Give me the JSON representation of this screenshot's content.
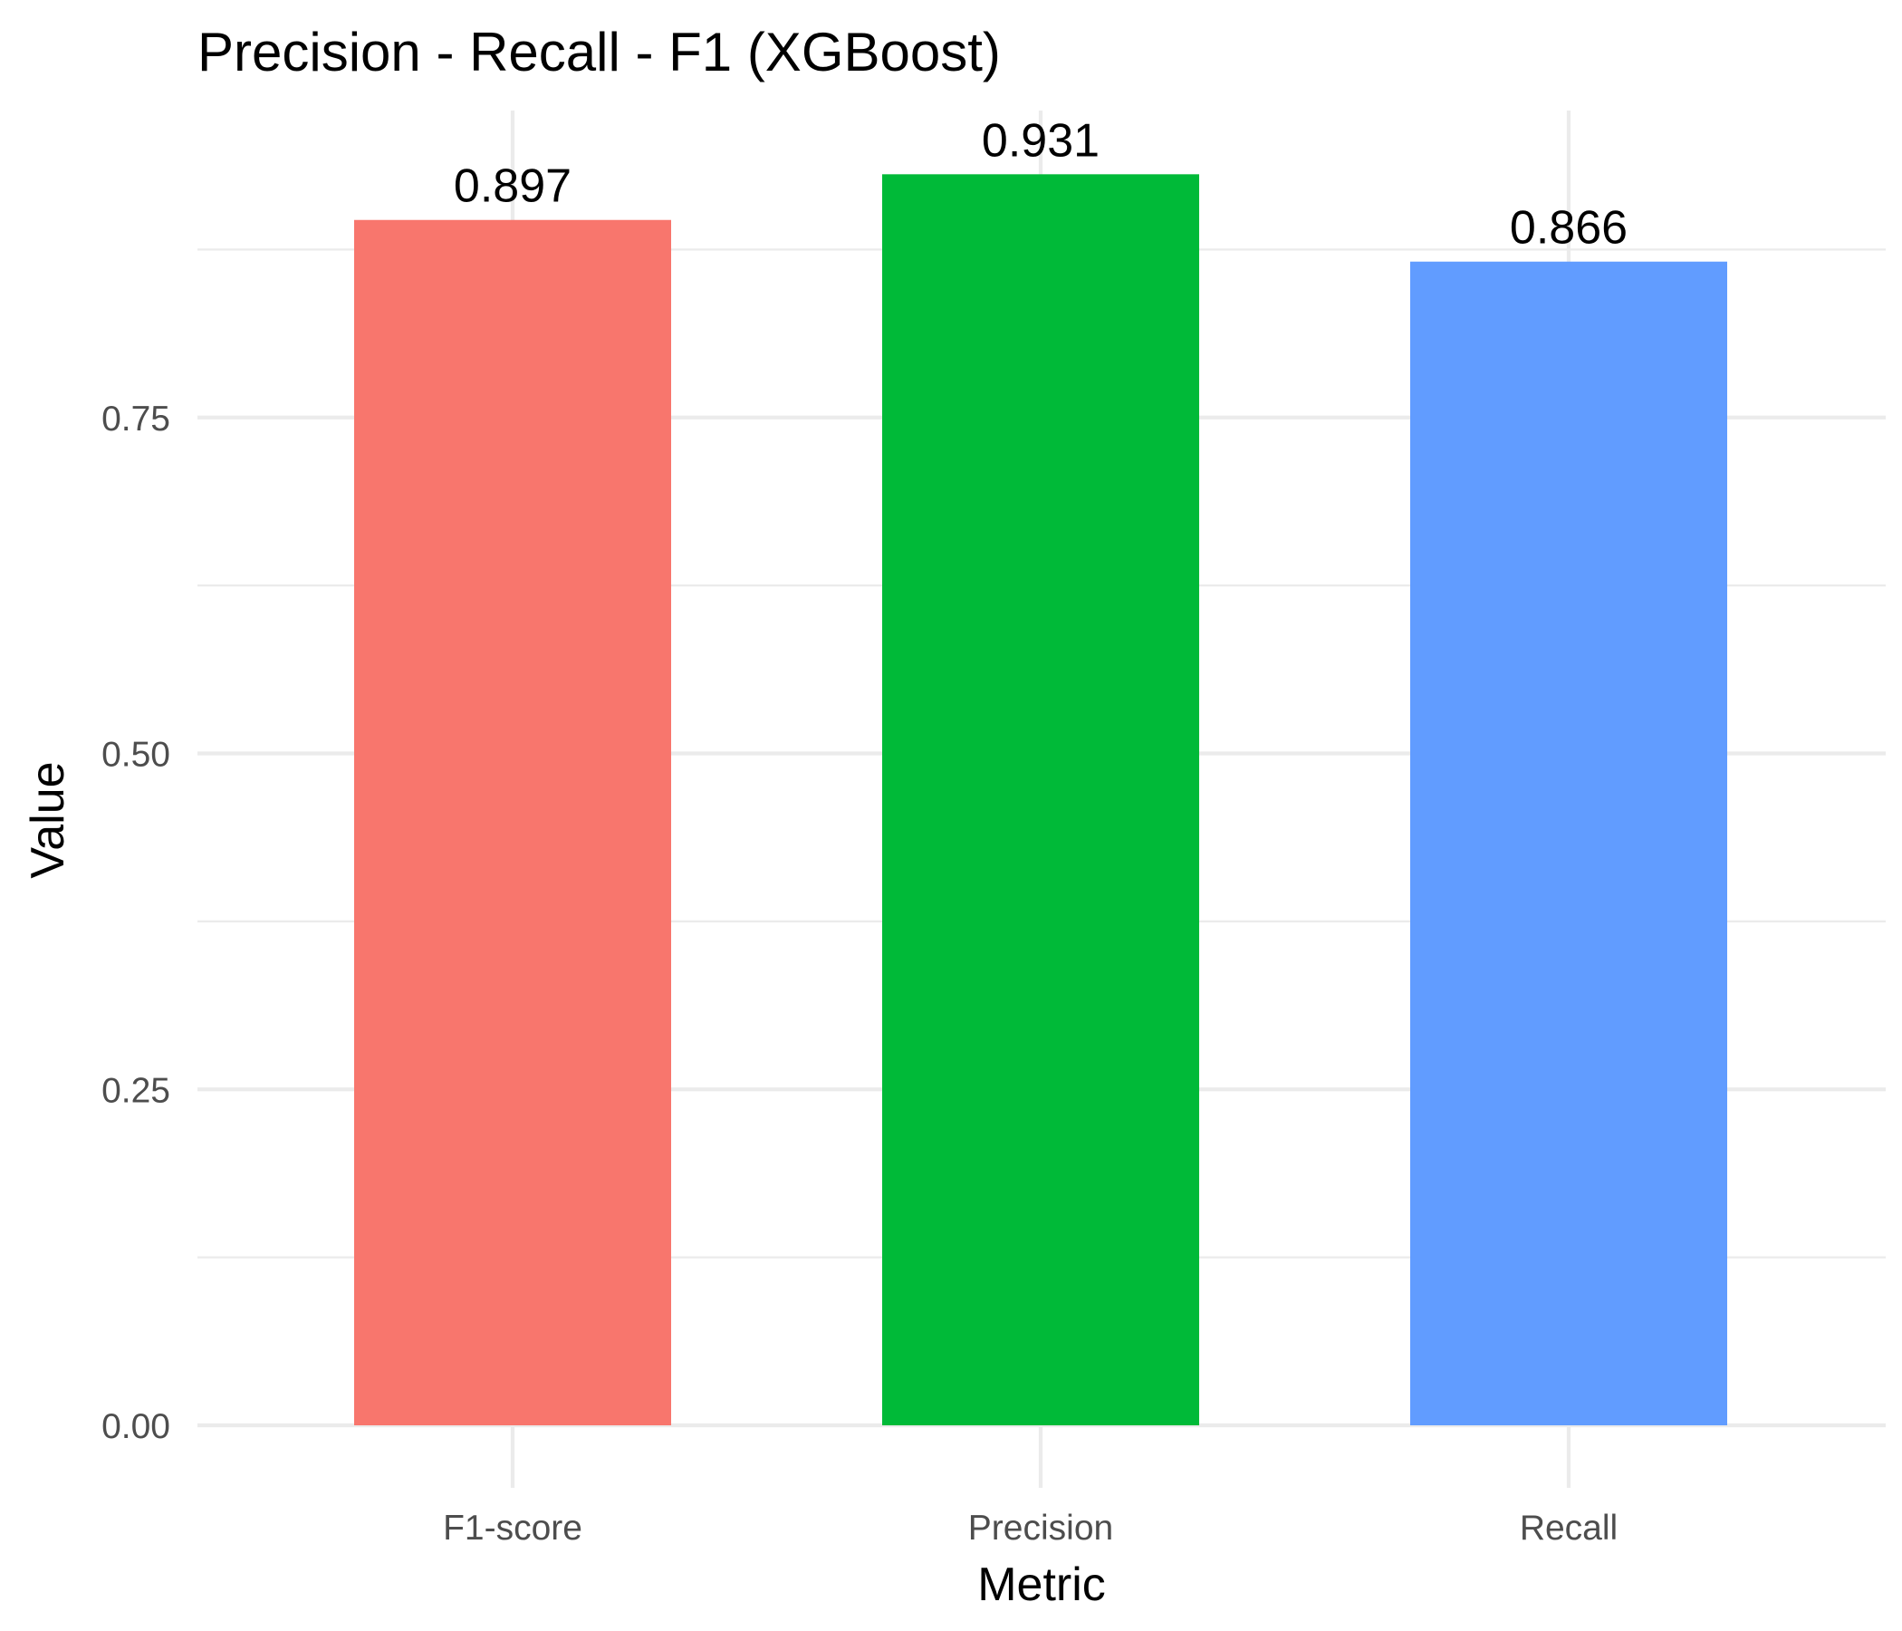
{
  "chart_data": {
    "type": "bar",
    "title": "Precision - Recall - F1 (XGBoost)",
    "xlabel": "Metric",
    "ylabel": "Value",
    "categories": [
      "F1-score",
      "Precision",
      "Recall"
    ],
    "values": [
      0.897,
      0.931,
      0.866
    ],
    "value_labels": [
      "0.897",
      "0.931",
      "0.866"
    ],
    "colors": [
      "#F8766D",
      "#00BA38",
      "#619CFF"
    ],
    "ylim": [
      0,
      1
    ],
    "yticks": [
      0,
      0.25,
      0.5,
      0.75
    ],
    "ytick_labels": [
      "0.00",
      "0.25",
      "0.50",
      "0.75"
    ],
    "grid": true,
    "legend": "none"
  }
}
